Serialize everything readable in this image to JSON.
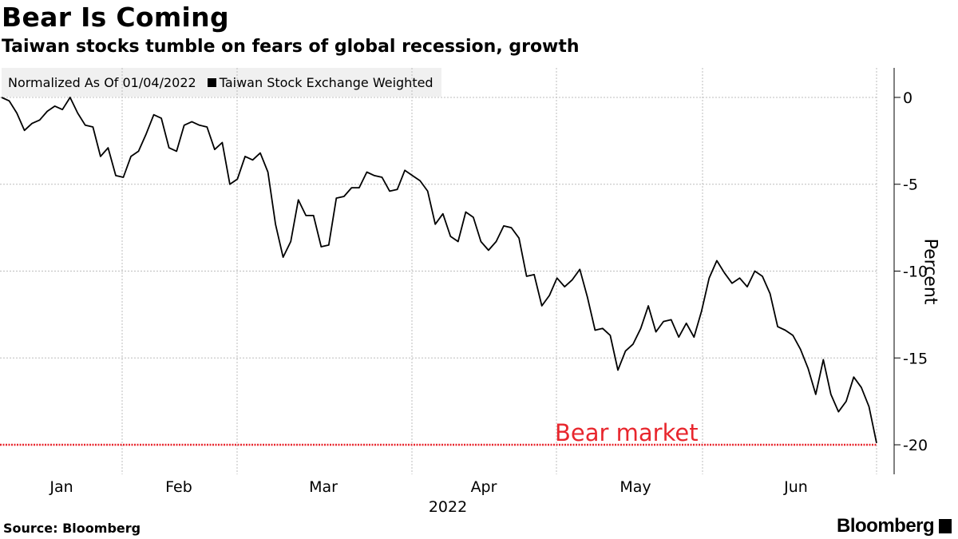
{
  "chart_data": {
    "type": "line",
    "title": "Bear Is Coming",
    "subtitle": "Taiwan stocks tumble on fears of global recession, growth",
    "note": "Normalized As Of 01/04/2022",
    "ylabel": "Percent",
    "xlabel": "2022",
    "x_tick_labels": [
      "Jan",
      "Feb",
      "Mar",
      "Apr",
      "May",
      "Jun"
    ],
    "y_ticks": [
      0,
      -5,
      -10,
      -15,
      -20
    ],
    "ylim": [
      -21.7,
      1.7
    ],
    "grid": true,
    "legend_placement": "top-left",
    "annotation": {
      "label": "Bear market",
      "value": -20,
      "color": "#e8262d"
    },
    "series": [
      {
        "name": "Taiwan Stock Exchange Weighted",
        "color": "#000000",
        "values": [
          0,
          -0.2,
          -0.9,
          -1.9,
          -1.5,
          -1.3,
          -0.8,
          -0.5,
          -0.7,
          0,
          -0.9,
          -1.6,
          -1.7,
          -3.4,
          -2.9,
          -4.5,
          -4.6,
          -3.4,
          -3.1,
          -2.1,
          -1.0,
          -1.2,
          -2.9,
          -3.1,
          -1.6,
          -1.4,
          -1.6,
          -1.7,
          -3.0,
          -2.6,
          -5.0,
          -4.7,
          -3.4,
          -3.6,
          -3.2,
          -4.3,
          -7.3,
          -9.2,
          -8.3,
          -5.9,
          -6.8,
          -6.8,
          -8.6,
          -8.5,
          -5.8,
          -5.7,
          -5.2,
          -5.2,
          -4.3,
          -4.5,
          -4.6,
          -5.4,
          -5.3,
          -4.2,
          -4.5,
          -4.8,
          -5.4,
          -7.3,
          -6.7,
          -8.0,
          -8.3,
          -6.6,
          -6.9,
          -8.3,
          -8.8,
          -8.3,
          -7.4,
          -7.5,
          -8.1,
          -10.3,
          -10.2,
          -12.0,
          -11.4,
          -10.4,
          -10.9,
          -10.5,
          -9.9,
          -11.5,
          -13.4,
          -13.3,
          -13.7,
          -15.7,
          -14.6,
          -14.2,
          -13.3,
          -12.0,
          -13.5,
          -12.9,
          -12.8,
          -13.8,
          -13.0,
          -13.8,
          -12.3,
          -10.4,
          -9.4,
          -10.1,
          -10.7,
          -10.4,
          -10.9,
          -10.0,
          -10.3,
          -11.3,
          -13.2,
          -13.4,
          -13.7,
          -14.5,
          -15.6,
          -17.1,
          -15.1,
          -17.1,
          -18.1,
          -17.5,
          -16.1,
          -16.7,
          -17.8,
          -19.9
        ]
      }
    ]
  },
  "source": "Source: Bloomberg",
  "brand": "Bloomberg"
}
